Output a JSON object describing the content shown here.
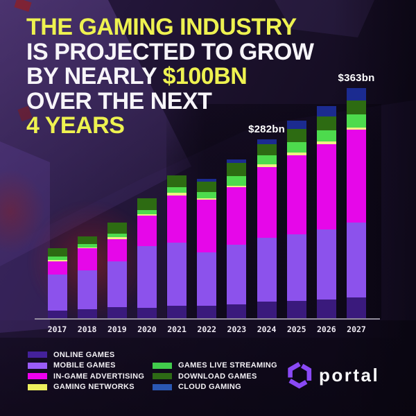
{
  "colors": {
    "yellow": "#eef250",
    "white": "#f7f5f9",
    "axis": "#a09aa8",
    "background": "#150e24",
    "annotation_text": "#ffffff"
  },
  "title": {
    "lines": [
      [
        {
          "text": "THE GAMING INDUSTRY",
          "color": "yellow"
        }
      ],
      [
        {
          "text": "IS PROJECTED TO GROW",
          "color": "white"
        }
      ],
      [
        {
          "text": "BY NEARLY ",
          "color": "white"
        },
        {
          "text": "$100BN",
          "color": "yellow"
        }
      ],
      [
        {
          "text": "OVER THE NEXT",
          "color": "white"
        }
      ],
      [
        {
          "text": "4 YEARS",
          "color": "yellow"
        }
      ]
    ]
  },
  "chart_data": {
    "type": "bar",
    "stacked": true,
    "unit": "USD billions",
    "categories": [
      "2017",
      "2018",
      "2019",
      "2020",
      "2021",
      "2022",
      "2023",
      "2024",
      "2025",
      "2026",
      "2027"
    ],
    "series": [
      {
        "name": "ONLINE GAMES",
        "bar_color": "#3a1a7c",
        "legend_color": "#44219b",
        "values": [
          12,
          14,
          17,
          16,
          19.5,
          20,
          22,
          26,
          27,
          30,
          33
        ]
      },
      {
        "name": "MOBILE GAMES",
        "bar_color": "#8c52ec",
        "legend_color": "#9b5cf7",
        "values": [
          57,
          62,
          73,
          98,
          100,
          84,
          93.5,
          101,
          105,
          110.5,
          117.5
        ]
      },
      {
        "name": "IN-GAME ADVERTISING",
        "bar_color": "#e607e9",
        "legend_color": "#ee00ee",
        "values": [
          21,
          34,
          34.5,
          48,
          74.5,
          82.5,
          91,
          111,
          124.5,
          133.5,
          146.5
        ]
      },
      {
        "name": "GAMING NETWORKS",
        "bar_color": "#eff084",
        "legend_color": "#ecf15d",
        "values": [
          2,
          1.5,
          3.5,
          2.5,
          3.5,
          3,
          2,
          4.5,
          4.5,
          4.5,
          4
        ]
      },
      {
        "name": "GAMES LIVE STREAMING",
        "bar_color": "#4ddb4d",
        "legend_color": "#41cc4c",
        "values": [
          5,
          5,
          5.5,
          6,
          9,
          9,
          16,
          15,
          16.5,
          18,
          20.5
        ]
      },
      {
        "name": "DOWNLOAD GAMES",
        "bar_color": "#2d6b12",
        "legend_color": "#2d6a15",
        "values": [
          13,
          13,
          17,
          19,
          19,
          16.5,
          20,
          17.5,
          21.5,
          22,
          21.5
        ]
      },
      {
        "name": "CLOUD GAMING",
        "bar_color": "#1b2b90",
        "legend_color": "#2a57b2",
        "values": [
          0,
          0,
          0,
          0,
          0,
          4.5,
          5.5,
          7,
          12.5,
          16.5,
          20
        ]
      }
    ],
    "totals": [
      110,
      129.5,
      150.5,
      189.5,
      225.5,
      219.5,
      250,
      282,
      311.5,
      335,
      363
    ],
    "annotations": [
      {
        "category": "2024",
        "label": "$282bn"
      },
      {
        "category": "2027",
        "label": "$363bn"
      }
    ],
    "legend_position": "bottom",
    "y_axis": {
      "shown": false
    },
    "x_axis": {
      "shown": true
    }
  },
  "legend": {
    "left_count": 4
  },
  "brand": {
    "name": "portal",
    "color": "#8a49f5"
  }
}
